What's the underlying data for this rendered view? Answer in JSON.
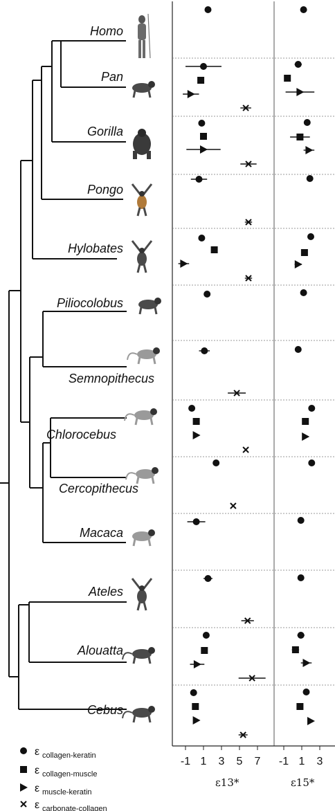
{
  "chart_data": {
    "type": "scatter",
    "taxa": [
      "Homo",
      "Pan",
      "Gorilla",
      "Pongo",
      "Hylobates",
      "Piliocolobus",
      "Semnopithecus",
      "Chlorocebus",
      "Cercopithecus",
      "Macaca",
      "Ateles",
      "Alouatta",
      "Cebus"
    ],
    "xlabels": {
      "left": "ε13*",
      "right": "ε15*"
    },
    "ticks": {
      "left": {
        "values": [
          -1,
          1,
          3,
          5,
          7
        ],
        "labels": [
          "-1",
          "1",
          "3",
          "5",
          "7"
        ]
      },
      "right": {
        "values": [
          -1,
          1,
          3
        ],
        "labels": [
          "-1",
          "1",
          "3"
        ]
      }
    },
    "xlim": {
      "left": [
        -3.2,
        9.3
      ],
      "right": [
        -2.7,
        4.9
      ]
    },
    "series": [
      {
        "name": "ε collagen-keratin",
        "marker": "circle"
      },
      {
        "name": "ε collagen-muscle",
        "marker": "square"
      },
      {
        "name": "ε muscle-keratin",
        "marker": "triangle"
      },
      {
        "name": "ε carbonate-collagen",
        "marker": "x"
      }
    ],
    "legend": [
      {
        "symbol": "circle",
        "eps": "ε",
        "sub": "collagen-keratin"
      },
      {
        "symbol": "square",
        "eps": "ε",
        "sub": "collagen-muscle"
      },
      {
        "symbol": "triangle",
        "eps": "ε",
        "sub": "muscle-keratin"
      },
      {
        "symbol": "x",
        "eps": "ε",
        "sub": "carbonate-collagen"
      }
    ],
    "legend_position": "bottom-left",
    "e13": [
      [
        {
          "s": 0,
          "v": 1.5,
          "e": 0.3
        }
      ],
      [
        {
          "s": 0,
          "v": 1.0,
          "e": 2.0
        },
        {
          "s": 1,
          "v": 0.7,
          "e": 0
        },
        {
          "s": 2,
          "v": -0.4,
          "e": 0.9
        },
        {
          "s": 3,
          "v": 5.7,
          "e": 0.6
        }
      ],
      [
        {
          "s": 0,
          "v": 0.8,
          "e": 0.2
        },
        {
          "s": 1,
          "v": 1.0,
          "e": 0.3
        },
        {
          "s": 2,
          "v": 1.0,
          "e": 1.9
        },
        {
          "s": 3,
          "v": 6.0,
          "e": 0.9
        }
      ],
      [
        {
          "s": 0,
          "v": 0.5,
          "e": 0.9
        },
        {
          "s": 3,
          "v": 6.0,
          "e": 0.4
        }
      ],
      [
        {
          "s": 0,
          "v": 0.8,
          "e": 0
        },
        {
          "s": 1,
          "v": 2.2,
          "e": 0
        },
        {
          "s": 2,
          "v": -1.2,
          "e": 0.6
        },
        {
          "s": 3,
          "v": 6.0,
          "e": 0.4
        }
      ],
      [
        {
          "s": 0,
          "v": 1.4,
          "e": 0.3
        }
      ],
      [
        {
          "s": 0,
          "v": 1.1,
          "e": 0.6
        },
        {
          "s": 3,
          "v": 4.7,
          "e": 1.0
        }
      ],
      [
        {
          "s": 0,
          "v": -0.3,
          "e": 0
        },
        {
          "s": 1,
          "v": 0.2,
          "e": 0
        },
        {
          "s": 2,
          "v": 0.2,
          "e": 0
        },
        {
          "s": 3,
          "v": 5.7,
          "e": 0
        }
      ],
      [
        {
          "s": 0,
          "v": 2.4,
          "e": 0
        },
        {
          "s": 3,
          "v": 4.3,
          "e": 0
        }
      ],
      [
        {
          "s": 0,
          "v": 0.2,
          "e": 1.0
        }
      ],
      [
        {
          "s": 0,
          "v": 1.5,
          "e": 0.5
        },
        {
          "s": 3,
          "v": 5.9,
          "e": 0.7
        }
      ],
      [
        {
          "s": 0,
          "v": 1.3,
          "e": 0.3
        },
        {
          "s": 1,
          "v": 1.1,
          "e": 0.3
        },
        {
          "s": 2,
          "v": 0.3,
          "e": 0.8
        },
        {
          "s": 3,
          "v": 6.4,
          "e": 1.5
        }
      ],
      [
        {
          "s": 0,
          "v": -0.1,
          "e": 0.3
        },
        {
          "s": 1,
          "v": 0.1,
          "e": 0.3
        },
        {
          "s": 2,
          "v": 0.2,
          "e": 0
        },
        {
          "s": 3,
          "v": 5.4,
          "e": 0.5
        }
      ]
    ],
    "e15": [
      [
        {
          "s": 0,
          "v": 1.2,
          "e": 0
        }
      ],
      [
        {
          "s": 0,
          "v": 0.6,
          "e": 0.4
        },
        {
          "s": 1,
          "v": -0.6,
          "e": 0
        },
        {
          "s": 2,
          "v": 0.8,
          "e": 1.6
        }
      ],
      [
        {
          "s": 0,
          "v": 1.6,
          "e": 0.3
        },
        {
          "s": 1,
          "v": 0.8,
          "e": 1.1
        },
        {
          "s": 2,
          "v": 1.8,
          "e": 0.6
        }
      ],
      [
        {
          "s": 0,
          "v": 1.9,
          "e": 0.3
        }
      ],
      [
        {
          "s": 0,
          "v": 2.0,
          "e": 0.3
        },
        {
          "s": 1,
          "v": 1.3,
          "e": 0
        },
        {
          "s": 2,
          "v": 0.6,
          "e": 0.4
        }
      ],
      [
        {
          "s": 0,
          "v": 1.2,
          "e": 0.3
        }
      ],
      [
        {
          "s": 0,
          "v": 0.6,
          "e": 0
        }
      ],
      [
        {
          "s": 0,
          "v": 2.1,
          "e": 0
        },
        {
          "s": 1,
          "v": 1.4,
          "e": 0
        },
        {
          "s": 2,
          "v": 1.4,
          "e": 0
        }
      ],
      [
        {
          "s": 0,
          "v": 2.1,
          "e": 0
        }
      ],
      [
        {
          "s": 0,
          "v": 0.9,
          "e": 0
        }
      ],
      [
        {
          "s": 0,
          "v": 0.9,
          "e": 0.3
        }
      ],
      [
        {
          "s": 0,
          "v": 0.9,
          "e": 0.4
        },
        {
          "s": 1,
          "v": 0.3,
          "e": 0.4
        },
        {
          "s": 2,
          "v": 1.5,
          "e": 0.6
        }
      ],
      [
        {
          "s": 0,
          "v": 1.5,
          "e": 0
        },
        {
          "s": 1,
          "v": 0.8,
          "e": 0.3
        },
        {
          "s": 2,
          "v": 2.0,
          "e": 0
        }
      ]
    ]
  }
}
